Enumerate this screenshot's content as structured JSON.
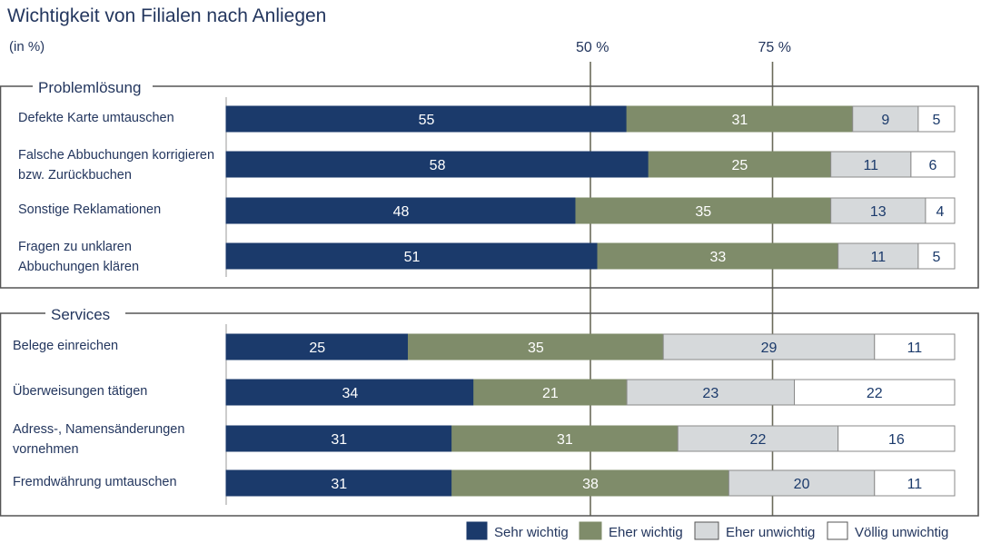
{
  "title": "Wichtigkeit von Filialen nach Anliegen",
  "unit": "(in %)",
  "colors": {
    "sehr": "#1b3a6b",
    "eher": "#7f8c6a",
    "unwichtig": "#d6d9db",
    "voellig": "#ffffff",
    "frame": "#555555",
    "reference_line": "#6b6b5a",
    "text": "#23365e"
  },
  "chart_data": {
    "type": "bar",
    "orientation": "horizontal",
    "stacked": true,
    "xlim": [
      0,
      100
    ],
    "reference_lines": [
      {
        "value": 50,
        "label": "50 %"
      },
      {
        "value": 75,
        "label": "75 %"
      }
    ],
    "series": [
      {
        "name": "Sehr wichtig",
        "key": "sehr"
      },
      {
        "name": "Eher wichtig",
        "key": "eher"
      },
      {
        "name": "Eher unwichtig",
        "key": "unwichtig"
      },
      {
        "name": "Völlig unwichtig",
        "key": "voellig"
      }
    ],
    "groups": [
      {
        "name": "Problemlösung",
        "rows": [
          {
            "label": [
              "Defekte Karte umtauschen"
            ],
            "values": [
              55,
              31,
              9,
              5
            ]
          },
          {
            "label": [
              "Falsche Abbuchungen korrigieren",
              "bzw. Zurückbuchen"
            ],
            "values": [
              58,
              25,
              11,
              6
            ]
          },
          {
            "label": [
              "Sonstige Reklamationen"
            ],
            "values": [
              48,
              35,
              13,
              4
            ]
          },
          {
            "label": [
              "Fragen zu unklaren",
              "Abbuchungen klären"
            ],
            "values": [
              51,
              33,
              11,
              5
            ]
          }
        ]
      },
      {
        "name": "Services",
        "rows": [
          {
            "label": [
              "Belege einreichen"
            ],
            "values": [
              25,
              35,
              29,
              11
            ]
          },
          {
            "label": [
              "Überweisungen tätigen"
            ],
            "values": [
              34,
              21,
              23,
              22
            ]
          },
          {
            "label": [
              "Adress-, Namensänderungen",
              "vornehmen"
            ],
            "values": [
              31,
              31,
              22,
              16
            ]
          },
          {
            "label": [
              "Fremdwährung umtauschen"
            ],
            "values": [
              31,
              38,
              20,
              11
            ]
          }
        ]
      }
    ],
    "legend_position": "bottom-right"
  }
}
